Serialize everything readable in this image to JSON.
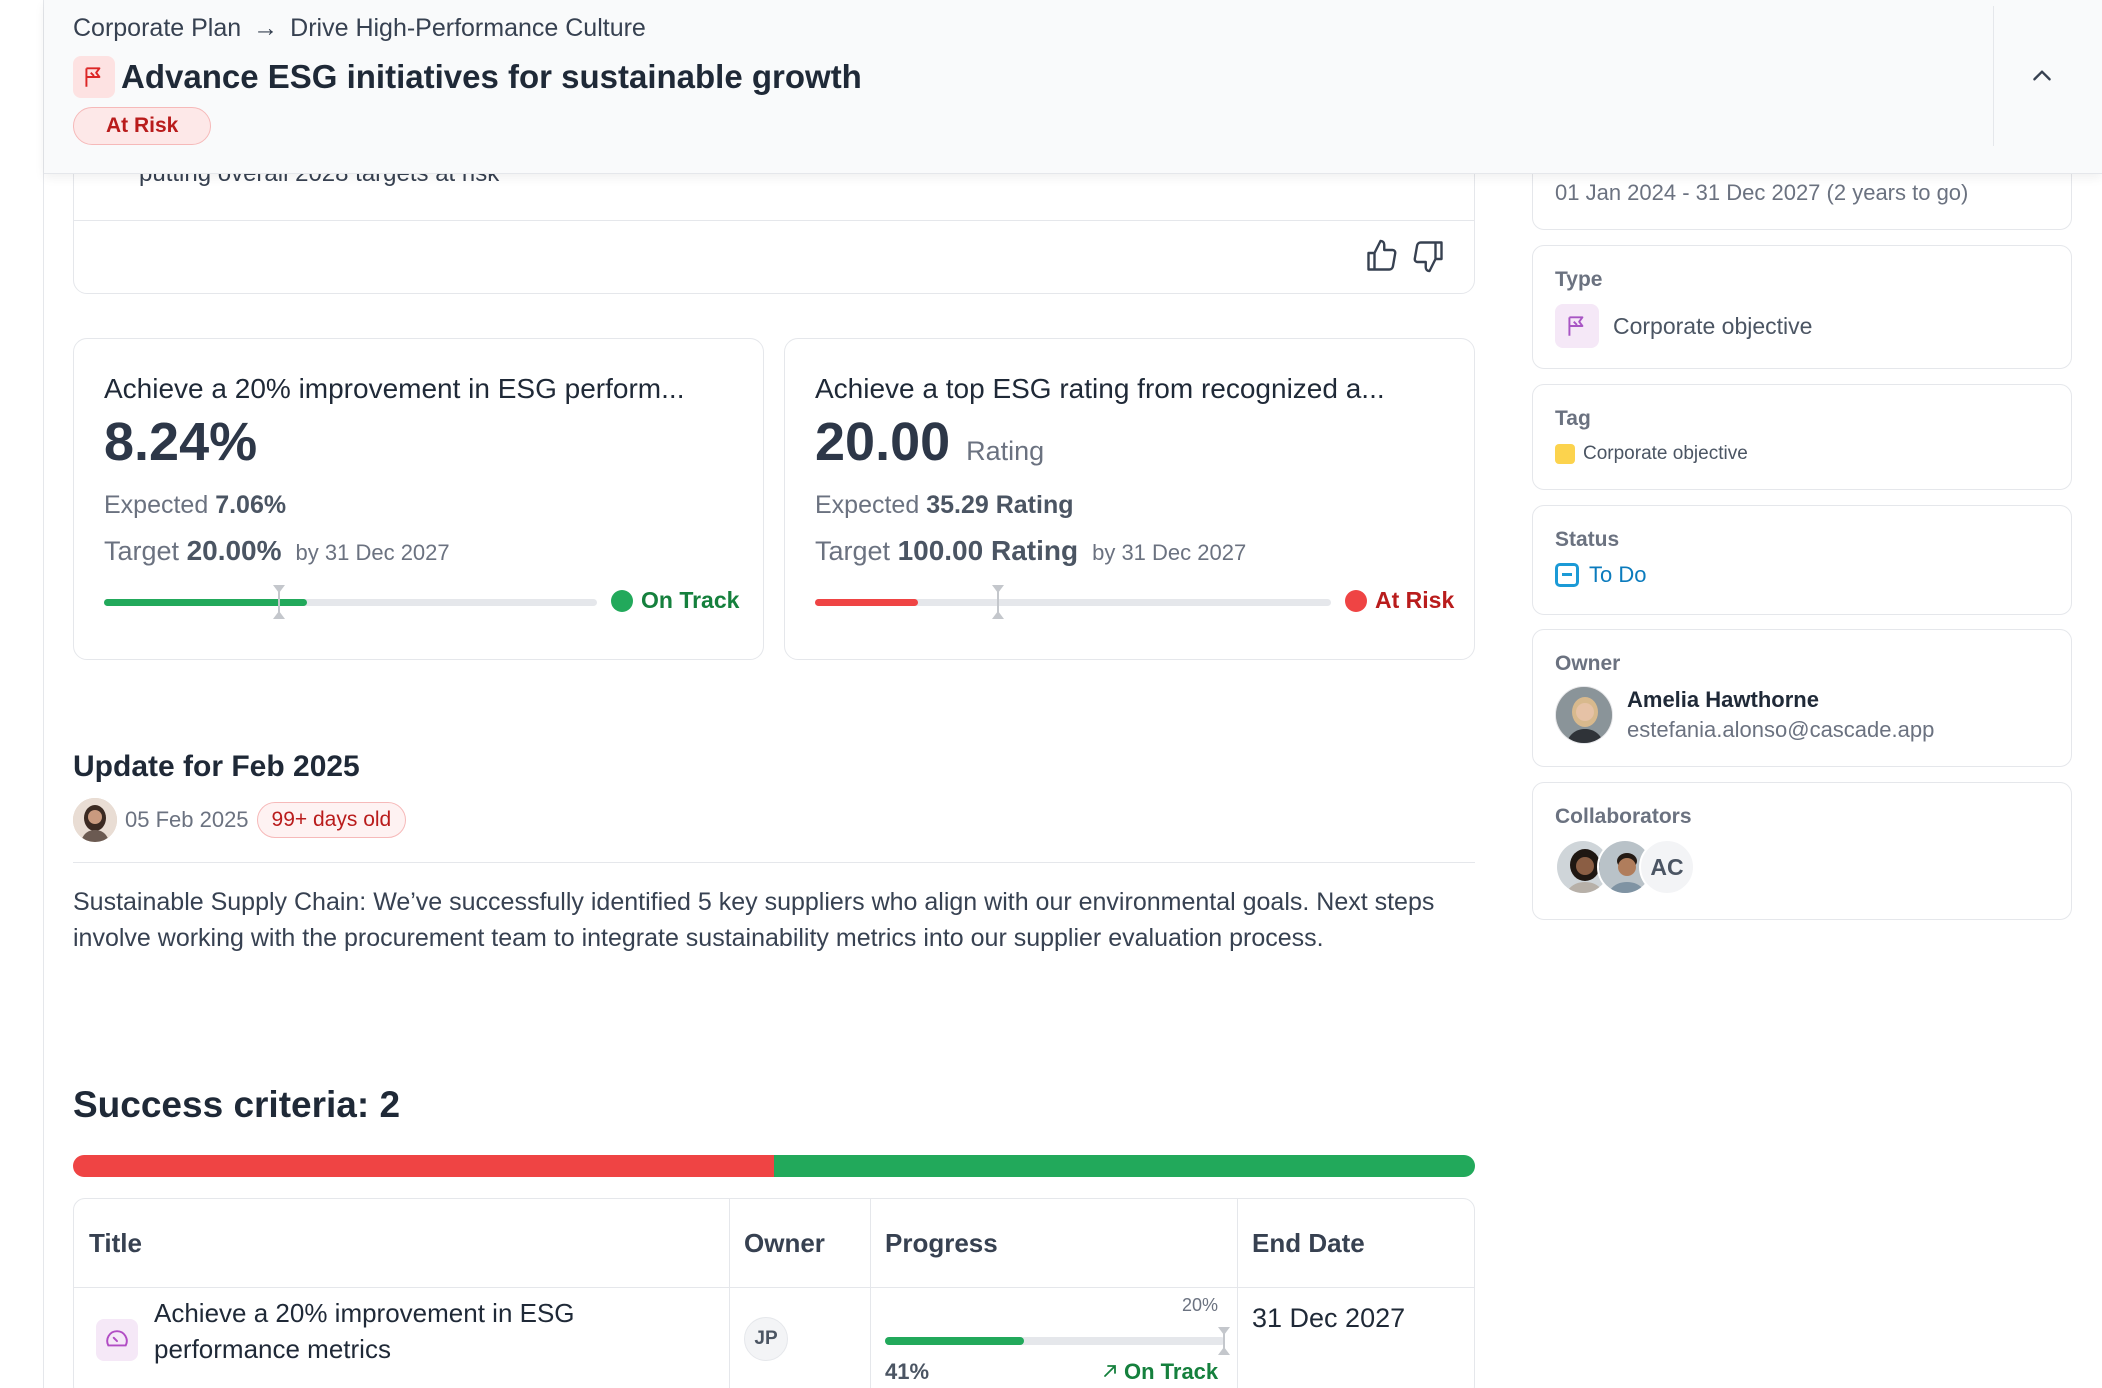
{
  "header": {
    "breadcrumb": [
      "Corporate Plan",
      "Drive High-Performance Culture"
    ],
    "breadcrumb_separator": "→",
    "title": "Advance ESG initiatives for sustainable growth",
    "status": "At Risk",
    "icon": "flag-icon"
  },
  "previous_card": {
    "text_fragment": "putting overall 2028 targets at risk",
    "actions": [
      "thumbs-up-icon",
      "thumbs-down-icon"
    ]
  },
  "kpis": [
    {
      "title": "Achieve a 20% improvement in ESG perform...",
      "value": "8.24%",
      "unit": "",
      "expected_label": "Expected",
      "expected": "7.06%",
      "target_label": "Target",
      "target": "20.00%",
      "by": "by 31 Dec 2027",
      "status": "On Track",
      "status_color": "#22a95b",
      "progress_fraction": 0.412,
      "expected_fraction": 0.353
    },
    {
      "title": "Achieve a top ESG rating from recognized a...",
      "value": "20.00",
      "unit": "Rating",
      "expected_label": "Expected",
      "expected": "35.29 Rating",
      "target_label": "Target",
      "target": "100.00 Rating",
      "by": "by 31 Dec 2027",
      "status": "At Risk",
      "status_color": "#ef4444",
      "progress_fraction": 0.2,
      "expected_fraction": 0.3529
    }
  ],
  "update": {
    "title": "Update for Feb 2025",
    "date": "05 Feb 2025",
    "age": "99+ days old",
    "body": "Sustainable Supply Chain: We’ve successfully identified 5 key suppliers who align with our environmental goals. Next steps involve working with the procurement team to integrate sustainability metrics into our supplier evaluation process."
  },
  "success_criteria": {
    "title": "Success criteria: 2",
    "status_split": [
      {
        "status": "At Risk",
        "fraction": 0.5,
        "color": "#ef4444"
      },
      {
        "status": "On Track",
        "fraction": 0.5,
        "color": "#22a95b"
      }
    ],
    "columns": [
      "Title",
      "Owner",
      "Progress",
      "End Date"
    ],
    "rows": [
      {
        "title": "Achieve a 20% improvement in ESG performance metrics",
        "owner": "JP",
        "progress_pct": "41%",
        "progress_fraction": 0.41,
        "expected_label": "20%",
        "status": "On Track",
        "end_date": "31 Dec 2027"
      }
    ]
  },
  "sidebar": {
    "dates": "01 Jan 2024 - 31 Dec 2027 (2 years to go)",
    "type_label": "Type",
    "type_value": "Corporate objective",
    "tag_label": "Tag",
    "tag_value": "Corporate objective",
    "tag_color": "#fcd34d",
    "status_label": "Status",
    "status_value": "To Do",
    "owner_label": "Owner",
    "owner_name": "Amelia Hawthorne",
    "owner_email": "estefania.alonso@cascade.app",
    "collaborators_label": "Collaborators",
    "collaborator_initials": "AC"
  }
}
